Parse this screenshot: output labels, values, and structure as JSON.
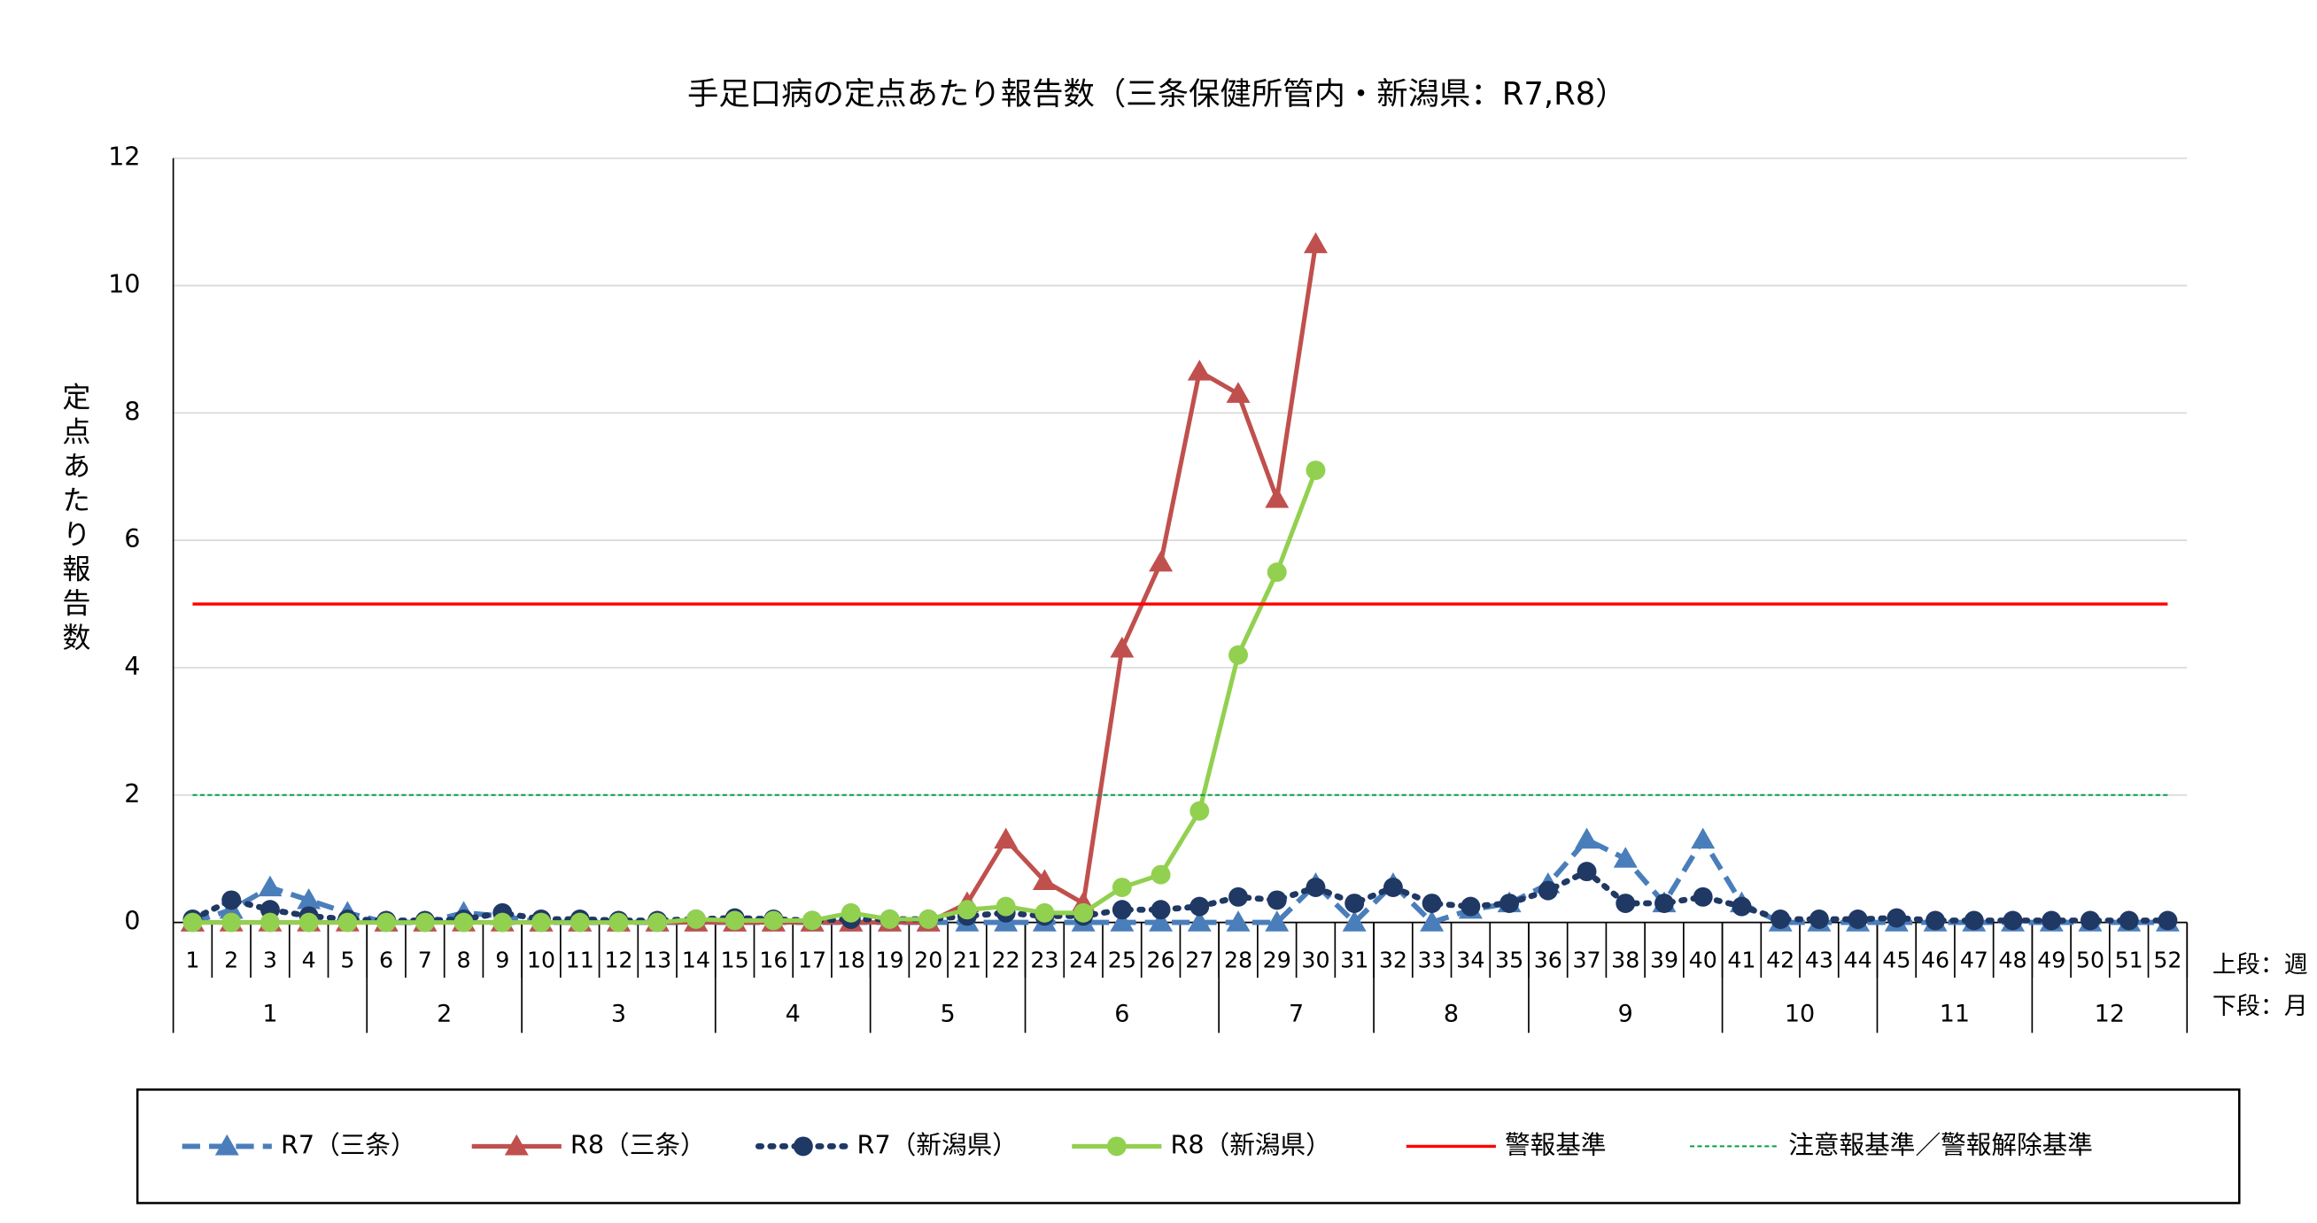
{
  "chart_data": {
    "type": "line",
    "title": "手足口病の定点あたり報告数（三条保健所管内・新潟県：R7,R8）",
    "y_label": "定点あたり報告数",
    "x_row_labels": [
      "上段：週",
      "下段：月"
    ],
    "categories": [
      1,
      2,
      3,
      4,
      5,
      6,
      7,
      8,
      9,
      10,
      11,
      12,
      13,
      14,
      15,
      16,
      17,
      18,
      19,
      20,
      21,
      22,
      23,
      24,
      25,
      26,
      27,
      28,
      29,
      30,
      31,
      32,
      33,
      34,
      35,
      36,
      37,
      38,
      39,
      40,
      41,
      42,
      43,
      44,
      45,
      46,
      47,
      48,
      49,
      50,
      51,
      52
    ],
    "months": [
      "1",
      "2",
      "3",
      "4",
      "5",
      "6",
      "7",
      "8",
      "9",
      "10",
      "11",
      "12"
    ],
    "ylim": [
      0,
      12
    ],
    "yticks": [
      0,
      2,
      4,
      6,
      8,
      10,
      12
    ],
    "grid": true,
    "series": [
      {
        "name": "R7（三条）",
        "color": "#4a7ebb",
        "dash": "dashed",
        "marker": "triangle",
        "values": [
          0,
          0.2,
          0.55,
          0.35,
          0.15,
          0,
          0,
          0.15,
          0.1,
          0,
          0,
          0,
          0,
          0,
          0,
          0,
          0,
          0,
          0,
          0,
          0,
          0,
          0,
          0,
          0,
          0,
          0,
          0,
          0,
          0.6,
          0,
          0.6,
          0,
          0.2,
          0.3,
          0.6,
          1.3,
          1.0,
          0.3,
          1.3,
          0.3,
          0,
          0,
          0,
          0,
          0,
          0,
          0,
          0,
          0,
          0,
          0
        ]
      },
      {
        "name": "R8（三条）",
        "color": "#c0504d",
        "dash": "solid",
        "marker": "triangle",
        "values": [
          0,
          0,
          0,
          0,
          0,
          0,
          0,
          0,
          0,
          0,
          0,
          0,
          0,
          0,
          0,
          0,
          0,
          0,
          0,
          0,
          0.3,
          1.3,
          0.65,
          0.3,
          4.3,
          5.65,
          8.65,
          8.3,
          6.65,
          10.65,
          null,
          null,
          null,
          null,
          null,
          null,
          null,
          null,
          null,
          null,
          null,
          null,
          null,
          null,
          null,
          null,
          null,
          null,
          null,
          null,
          null,
          null
        ]
      },
      {
        "name": "R7（新潟県）",
        "color": "#1f3864",
        "dash": "dotted",
        "marker": "circle",
        "values": [
          0.05,
          0.35,
          0.2,
          0.1,
          0.05,
          0.03,
          0.03,
          0.05,
          0.15,
          0.05,
          0.05,
          0.03,
          0.03,
          0.05,
          0.07,
          0.05,
          0.03,
          0.05,
          0.05,
          0.05,
          0.1,
          0.15,
          0.1,
          0.1,
          0.2,
          0.2,
          0.25,
          0.4,
          0.35,
          0.55,
          0.3,
          0.55,
          0.3,
          0.25,
          0.3,
          0.5,
          0.8,
          0.3,
          0.3,
          0.4,
          0.25,
          0.05,
          0.05,
          0.05,
          0.07,
          0.03,
          0.03,
          0.03,
          0.03,
          0.03,
          0.03,
          0.03
        ]
      },
      {
        "name": "R8（新潟県）",
        "color": "#92d050",
        "dash": "solid",
        "marker": "circle",
        "values": [
          0,
          0,
          0,
          0,
          0,
          0,
          0,
          0,
          0,
          0,
          0,
          0,
          0,
          0.05,
          0.03,
          0.03,
          0.03,
          0.15,
          0.05,
          0.05,
          0.2,
          0.25,
          0.15,
          0.15,
          0.55,
          0.75,
          1.75,
          4.2,
          5.5,
          7.1,
          null,
          null,
          null,
          null,
          null,
          null,
          null,
          null,
          null,
          null,
          null,
          null,
          null,
          null,
          null,
          null,
          null,
          null,
          null,
          null,
          null,
          null
        ]
      },
      {
        "name": "警報基準",
        "color": "#ff0000",
        "dash": "solid",
        "marker": "none",
        "values": [
          5,
          5,
          5,
          5,
          5,
          5,
          5,
          5,
          5,
          5,
          5,
          5,
          5,
          5,
          5,
          5,
          5,
          5,
          5,
          5,
          5,
          5,
          5,
          5,
          5,
          5,
          5,
          5,
          5,
          5,
          5,
          5,
          5,
          5,
          5,
          5,
          5,
          5,
          5,
          5,
          5,
          5,
          5,
          5,
          5,
          5,
          5,
          5,
          5,
          5,
          5,
          5
        ]
      },
      {
        "name": "注意報基準／警報解除基準",
        "color": "#00a04a",
        "dash": "fine",
        "marker": "none",
        "values": [
          2,
          2,
          2,
          2,
          2,
          2,
          2,
          2,
          2,
          2,
          2,
          2,
          2,
          2,
          2,
          2,
          2,
          2,
          2,
          2,
          2,
          2,
          2,
          2,
          2,
          2,
          2,
          2,
          2,
          2,
          2,
          2,
          2,
          2,
          2,
          2,
          2,
          2,
          2,
          2,
          2,
          2,
          2,
          2,
          2,
          2,
          2,
          2,
          2,
          2,
          2,
          2
        ]
      }
    ]
  }
}
